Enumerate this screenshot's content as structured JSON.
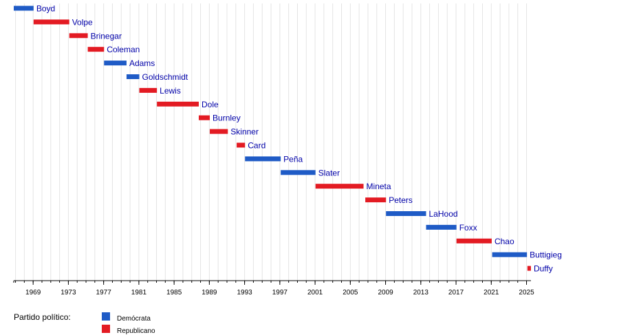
{
  "chart_data": {
    "type": "timeline",
    "title": "",
    "xlabel": "",
    "ylabel": "",
    "xlim": [
      1966.8,
      2025.5
    ],
    "grid": true,
    "x_ticks": [
      "1969",
      "1973",
      "1977",
      "1981",
      "1985",
      "1989",
      "1993",
      "1997",
      "2001",
      "2005",
      "2009",
      "2013",
      "2017",
      "2021",
      "2025"
    ],
    "legend": {
      "title": "Partido político:",
      "placement": "bottom-left",
      "entries": [
        {
          "party": "D",
          "label": "Demócrata",
          "color": "#1f5bc6"
        },
        {
          "party": "R",
          "label": "Republicano",
          "color": "#e31b23"
        }
      ]
    },
    "series": [
      {
        "name": "Boyd",
        "party": "D",
        "start": 1966.8,
        "end": 1969.05
      },
      {
        "name": "Volpe",
        "party": "R",
        "start": 1969.05,
        "end": 1973.1
      },
      {
        "name": "Brinegar",
        "party": "R",
        "start": 1973.1,
        "end": 1975.2
      },
      {
        "name": "Coleman",
        "party": "R",
        "start": 1975.2,
        "end": 1977.05
      },
      {
        "name": "Adams",
        "party": "D",
        "start": 1977.05,
        "end": 1979.6
      },
      {
        "name": "Goldschmidt",
        "party": "D",
        "start": 1979.6,
        "end": 1981.05
      },
      {
        "name": "Lewis",
        "party": "R",
        "start": 1981.05,
        "end": 1983.05
      },
      {
        "name": "Dole",
        "party": "R",
        "start": 1983.05,
        "end": 1987.8
      },
      {
        "name": "Burnley",
        "party": "R",
        "start": 1987.8,
        "end": 1989.05
      },
      {
        "name": "Skinner",
        "party": "R",
        "start": 1989.05,
        "end": 1991.1
      },
      {
        "name": "Card",
        "party": "R",
        "start": 1992.1,
        "end": 1993.05
      },
      {
        "name": "Peña",
        "party": "D",
        "start": 1993.05,
        "end": 1997.1
      },
      {
        "name": "Slater",
        "party": "D",
        "start": 1997.1,
        "end": 2001.05
      },
      {
        "name": "Mineta",
        "party": "R",
        "start": 2001.05,
        "end": 2006.5
      },
      {
        "name": "Peters",
        "party": "R",
        "start": 2006.7,
        "end": 2009.05
      },
      {
        "name": "LaHood",
        "party": "D",
        "start": 2009.05,
        "end": 2013.6
      },
      {
        "name": "Foxx",
        "party": "D",
        "start": 2013.6,
        "end": 2017.05
      },
      {
        "name": "Chao",
        "party": "R",
        "start": 2017.05,
        "end": 2021.05
      },
      {
        "name": "Buttigieg",
        "party": "D",
        "start": 2021.1,
        "end": 2025.05
      },
      {
        "name": "Duffy",
        "party": "R",
        "start": 2025.1,
        "end": 2025.5
      }
    ]
  }
}
